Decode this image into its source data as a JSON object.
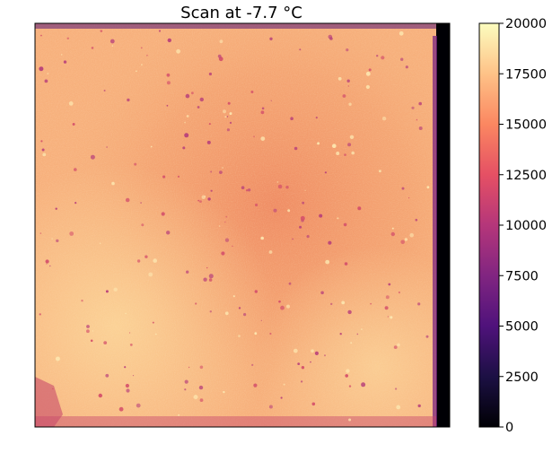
{
  "chart_data": {
    "type": "heatmap",
    "title": "Scan at -7.7 °C",
    "xlabel": "",
    "ylabel": "",
    "colormap": "magma",
    "colorbar": {
      "range": [
        0,
        20000
      ],
      "ticks": [
        0,
        2500,
        5000,
        7500,
        10000,
        12500,
        15000,
        17500,
        20000
      ],
      "tick_labels": [
        "0",
        "2500",
        "5000",
        "7500",
        "10000",
        "12500",
        "15000",
        "17500",
        "20000"
      ]
    },
    "axes_ticks_visible": false,
    "grid": false,
    "image_description_values": {
      "typical_intensity_range": [
        13000,
        18000
      ],
      "dark_border_value": 0
    }
  },
  "colors": {
    "colormap_stops": [
      "#000004",
      "#1c1044",
      "#4f127b",
      "#812581",
      "#b5367a",
      "#e55064",
      "#fb8761",
      "#fec287",
      "#fcfdbf"
    ]
  }
}
